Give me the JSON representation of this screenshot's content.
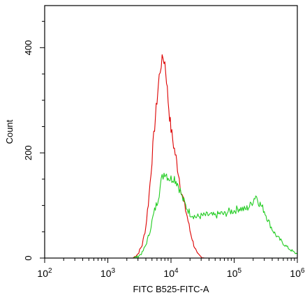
{
  "chart_data": {
    "type": "line",
    "title": "",
    "xlabel": "FITC B525-FITC-A",
    "ylabel": "Count",
    "xscale": "log",
    "xlim": [
      100,
      1000000
    ],
    "ylim": [
      0,
      480
    ],
    "grid": false,
    "x_ticks": [
      {
        "value": 100,
        "base": "10",
        "exp": "2"
      },
      {
        "value": 1000,
        "base": "10",
        "exp": "3"
      },
      {
        "value": 10000,
        "base": "10",
        "exp": "4"
      },
      {
        "value": 100000,
        "base": "10",
        "exp": "5"
      },
      {
        "value": 1000000,
        "base": "10",
        "exp": "6"
      }
    ],
    "y_ticks": [
      {
        "value": 0,
        "label": "0"
      },
      {
        "value": 200,
        "label": "200"
      },
      {
        "value": 400,
        "label": "400"
      }
    ],
    "series": [
      {
        "color": "#dd0000",
        "points": [
          [
            2500,
            0
          ],
          [
            3000,
            8
          ],
          [
            3500,
            25
          ],
          [
            4000,
            60
          ],
          [
            4500,
            120
          ],
          [
            5000,
            190
          ],
          [
            5500,
            250
          ],
          [
            6000,
            300
          ],
          [
            6500,
            345
          ],
          [
            7000,
            370
          ],
          [
            7500,
            380
          ],
          [
            8000,
            372
          ],
          [
            8500,
            340
          ],
          [
            9000,
            300
          ],
          [
            9500,
            270
          ],
          [
            10000,
            245
          ],
          [
            11000,
            215
          ],
          [
            12000,
            190
          ],
          [
            13000,
            165
          ],
          [
            14000,
            140
          ],
          [
            16000,
            105
          ],
          [
            18000,
            80
          ],
          [
            20000,
            52
          ],
          [
            23000,
            25
          ],
          [
            26000,
            8
          ],
          [
            30000,
            2
          ],
          [
            35000,
            0
          ]
        ]
      },
      {
        "color": "#22cc22",
        "points": [
          [
            2500,
            0
          ],
          [
            3000,
            3
          ],
          [
            3500,
            10
          ],
          [
            4000,
            25
          ],
          [
            4500,
            45
          ],
          [
            5000,
            70
          ],
          [
            5500,
            90
          ],
          [
            6000,
            105
          ],
          [
            6500,
            125
          ],
          [
            7000,
            145
          ],
          [
            7500,
            158
          ],
          [
            8000,
            165
          ],
          [
            8500,
            160
          ],
          [
            9000,
            155
          ],
          [
            10000,
            150
          ],
          [
            11000,
            155
          ],
          [
            12000,
            148
          ],
          [
            13000,
            140
          ],
          [
            14000,
            128
          ],
          [
            15000,
            115
          ],
          [
            17000,
            100
          ],
          [
            20000,
            85
          ],
          [
            25000,
            78
          ],
          [
            30000,
            80
          ],
          [
            40000,
            82
          ],
          [
            50000,
            80
          ],
          [
            60000,
            85
          ],
          [
            70000,
            83
          ],
          [
            80000,
            88
          ],
          [
            100000,
            90
          ],
          [
            120000,
            95
          ],
          [
            150000,
            92
          ],
          [
            180000,
            100
          ],
          [
            200000,
            110
          ],
          [
            220000,
            120
          ],
          [
            250000,
            105
          ],
          [
            300000,
            90
          ],
          [
            350000,
            70
          ],
          [
            400000,
            55
          ],
          [
            450000,
            45
          ],
          [
            500000,
            38
          ],
          [
            600000,
            28
          ],
          [
            700000,
            20
          ],
          [
            800000,
            15
          ],
          [
            900000,
            10
          ],
          [
            1000000,
            8
          ]
        ]
      }
    ]
  }
}
